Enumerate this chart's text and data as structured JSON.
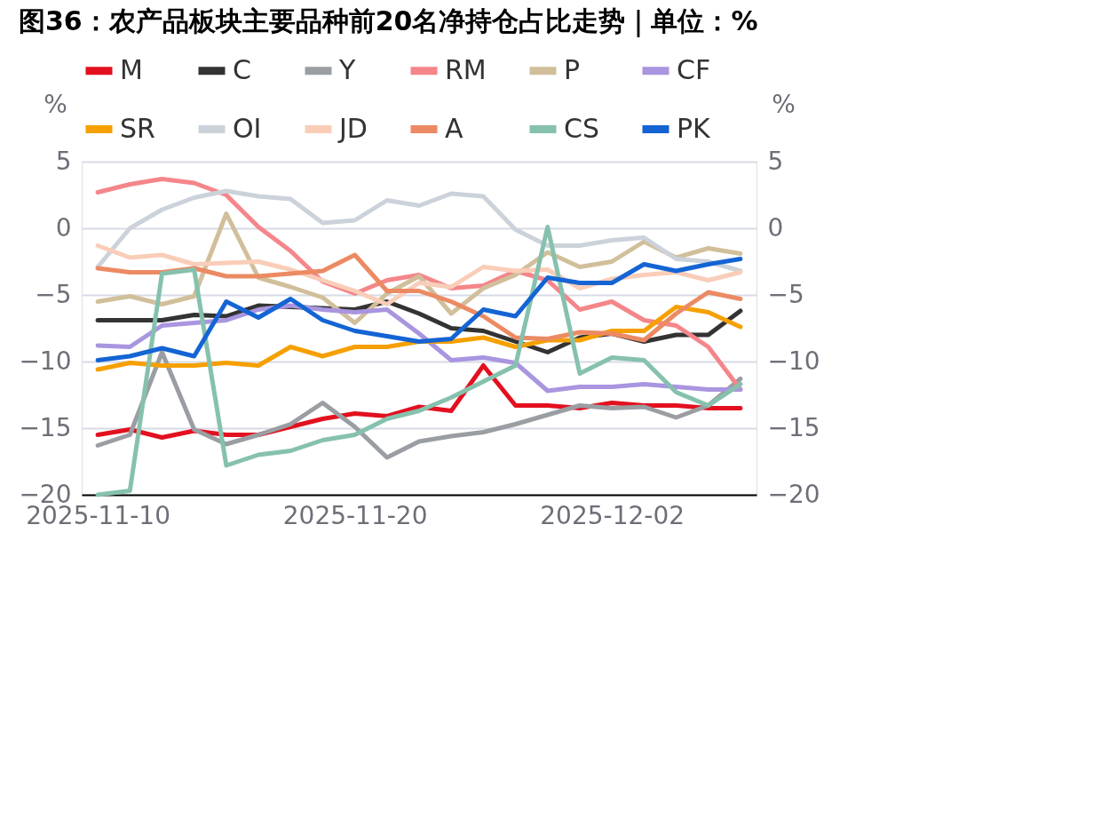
{
  "chart_data": {
    "type": "line",
    "title": "图36：农产品板块主要品种前20名净持仓占比走势｜单位：%",
    "ylabel": "%",
    "y2label": "%",
    "categories": [
      "2025-11-10",
      null,
      null,
      null,
      null,
      null,
      null,
      null,
      "2025-11-20",
      null,
      null,
      null,
      null,
      null,
      null,
      null,
      "2025-12-02",
      null,
      null,
      null,
      null
    ],
    "ylim": [
      -20,
      5
    ],
    "yticks": [
      -20,
      -15,
      -10,
      -5,
      0,
      5
    ],
    "y2lim": [
      -20,
      5
    ],
    "y2ticks": [
      -20,
      -15,
      -10,
      -5,
      0,
      5
    ],
    "grid": "y",
    "legend": "top",
    "series": [
      {
        "name": "M",
        "color": "#e3101f",
        "values": [
          -15.5,
          -15.1,
          -15.7,
          -15.2,
          -15.5,
          -15.5,
          -14.9,
          -14.3,
          -13.9,
          -14.1,
          -13.4,
          -13.7,
          -10.3,
          -13.3,
          -13.3,
          -13.5,
          -13.1,
          -13.3,
          -13.3,
          -13.5,
          -13.5
        ]
      },
      {
        "name": "C",
        "color": "#333333",
        "values": [
          -6.9,
          -6.9,
          -6.9,
          -6.5,
          -6.6,
          -5.8,
          -5.9,
          -6.0,
          -6.1,
          -5.5,
          -6.4,
          -7.5,
          -7.7,
          -8.5,
          -9.3,
          -8.2,
          -7.9,
          -8.5,
          -8.0,
          -8.0,
          -6.2
        ]
      },
      {
        "name": "Y",
        "color": "#9a9ea3",
        "values": [
          -16.3,
          -15.5,
          -9.3,
          -15.1,
          -16.2,
          -15.5,
          -14.7,
          -13.1,
          -14.9,
          -17.2,
          -16.0,
          -15.6,
          -15.3,
          -14.7,
          -14.0,
          -13.3,
          -13.5,
          -13.4,
          -14.2,
          -13.3,
          -11.3
        ]
      },
      {
        "name": "RM",
        "color": "#f4868a",
        "values": [
          2.7,
          3.3,
          3.7,
          3.4,
          2.5,
          0.1,
          -1.7,
          -4.0,
          -4.9,
          -3.9,
          -3.5,
          -4.5,
          -4.3,
          -3.2,
          -3.9,
          -6.1,
          -5.5,
          -6.9,
          -7.3,
          -8.9,
          -12.1
        ]
      },
      {
        "name": "P",
        "color": "#d1bf9b",
        "values": [
          -5.5,
          -5.1,
          -5.7,
          -5.1,
          1.1,
          -3.7,
          -4.4,
          -5.2,
          -7.1,
          -4.9,
          -3.6,
          -6.4,
          -4.5,
          -3.5,
          -1.8,
          -2.9,
          -2.5,
          -1.0,
          -2.2,
          -1.5,
          -1.9
        ]
      },
      {
        "name": "CF",
        "color": "#a995e0",
        "values": [
          -8.8,
          -8.9,
          -7.3,
          -7.1,
          -6.9,
          -6.1,
          -5.8,
          -6.1,
          -6.3,
          -6.1,
          -7.9,
          -9.9,
          -9.7,
          -10.1,
          -12.2,
          -11.9,
          -11.9,
          -11.7,
          -11.9,
          -12.1,
          -12.1
        ]
      },
      {
        "name": "SR",
        "color": "#f5a000",
        "values": [
          -10.6,
          -10.1,
          -10.3,
          -10.3,
          -10.1,
          -10.3,
          -8.9,
          -9.6,
          -8.9,
          -8.9,
          -8.5,
          -8.5,
          -8.2,
          -8.9,
          -8.4,
          -8.4,
          -7.7,
          -7.7,
          -5.9,
          -6.3,
          -7.4
        ]
      },
      {
        "name": "OI",
        "color": "#ccd2da",
        "values": [
          -2.9,
          0.0,
          1.4,
          2.3,
          2.8,
          2.4,
          2.2,
          0.4,
          0.6,
          2.1,
          1.7,
          2.6,
          2.4,
          -0.1,
          -1.3,
          -1.3,
          -0.9,
          -0.7,
          -2.3,
          -2.5,
          -3.2
        ]
      },
      {
        "name": "JD",
        "color": "#f9cdb8",
        "values": [
          -1.3,
          -2.2,
          -2.0,
          -2.7,
          -2.6,
          -2.5,
          -3.1,
          -3.9,
          -4.7,
          -5.7,
          -4.1,
          -4.4,
          -2.9,
          -3.2,
          -3.1,
          -4.5,
          -3.8,
          -3.5,
          -3.3,
          -3.9,
          -3.3
        ]
      },
      {
        "name": "A",
        "color": "#ec8a63",
        "values": [
          -3.0,
          -3.3,
          -3.3,
          -3.0,
          -3.6,
          -3.6,
          -3.4,
          -3.2,
          -2.0,
          -4.7,
          -4.7,
          -5.5,
          -6.6,
          -8.2,
          -8.3,
          -7.8,
          -7.9,
          -8.4,
          -6.4,
          -4.8,
          -5.3
        ]
      },
      {
        "name": "CS",
        "color": "#86c1ae",
        "values": [
          -20.0,
          -19.7,
          -3.4,
          -3.1,
          -17.8,
          -17.0,
          -16.7,
          -15.9,
          -15.5,
          -14.3,
          -13.7,
          -12.7,
          -11.5,
          -10.3,
          0.1,
          -10.9,
          -9.7,
          -9.9,
          -12.3,
          -13.3,
          -11.7
        ]
      },
      {
        "name": "PK",
        "color": "#1464d4",
        "values": [
          -9.9,
          -9.6,
          -9.0,
          -9.6,
          -5.5,
          -6.7,
          -5.3,
          -6.9,
          -7.7,
          -8.1,
          -8.5,
          -8.3,
          -6.1,
          -6.6,
          -3.7,
          -4.1,
          -4.1,
          -2.7,
          -3.2,
          -2.7,
          -2.3
        ]
      }
    ]
  }
}
